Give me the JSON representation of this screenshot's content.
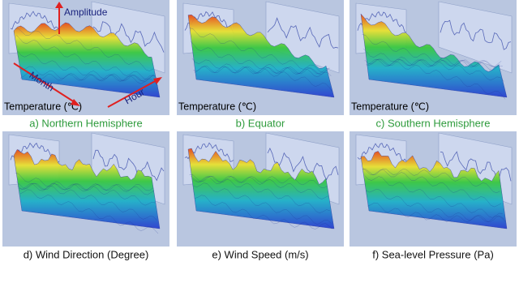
{
  "figure": {
    "panels": [
      {
        "caption": "a) Northern Hemisphere",
        "caption_color": "#2e9b3c",
        "axis_label": "Temperature (℃)",
        "annotations": {
          "amplitude": "Amplitude",
          "month": "Month",
          "hour": "Hour"
        }
      },
      {
        "caption": "b) Equator",
        "caption_color": "#2e9b3c",
        "axis_label": "Temperature (℃)"
      },
      {
        "caption": "c) Southern Hemisphere",
        "caption_color": "#2e9b3c",
        "axis_label": "Temperature (℃)"
      },
      {
        "caption": "d) Wind Direction (Degree)",
        "caption_color": "#111111"
      },
      {
        "caption": "e) Wind Speed (m/s)",
        "caption_color": "#111111"
      },
      {
        "caption": "f) Sea-level Pressure (Pa)",
        "caption_color": "#111111"
      }
    ]
  }
}
